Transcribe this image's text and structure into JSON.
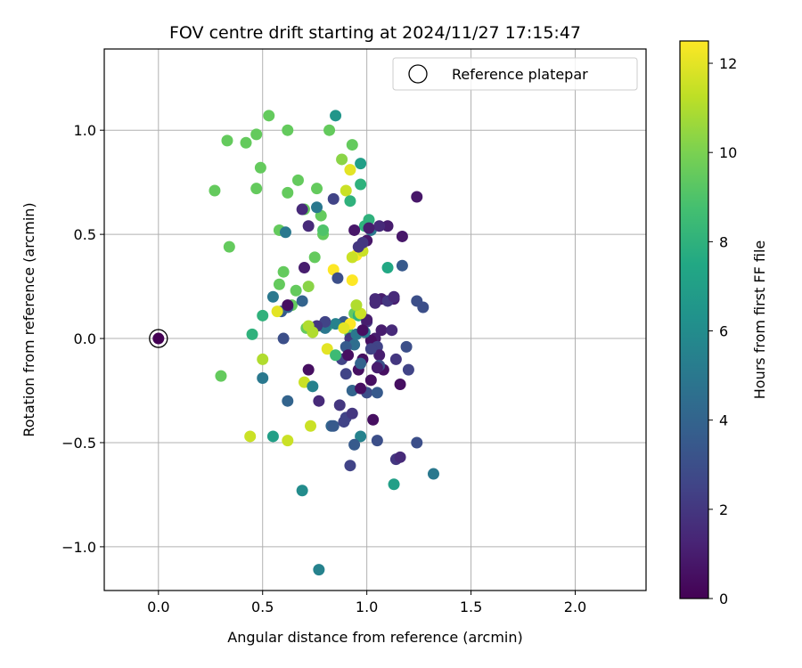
{
  "chart_data": {
    "type": "scatter",
    "title": "FOV centre drift starting at 2024/11/27 17:15:47",
    "xlabel": "Angular distance from reference (arcmin)",
    "ylabel": "Rotation from reference (arcmin)",
    "xlim": [
      -0.26,
      2.34
    ],
    "ylim": [
      -1.21,
      1.39
    ],
    "xticks": [
      0.0,
      0.5,
      1.0,
      1.5,
      2.0
    ],
    "xtick_labels": [
      "0.0",
      "0.5",
      "1.0",
      "1.5",
      "2.0"
    ],
    "yticks": [
      -1.0,
      -0.5,
      0.0,
      0.5,
      1.0
    ],
    "ytick_labels": [
      "−1.0",
      "−0.5",
      "0.0",
      "0.5",
      "1.0"
    ],
    "grid": true,
    "legend": {
      "placement": "top-right",
      "entries": [
        "Reference platepar"
      ]
    },
    "reference_point": {
      "x": 0.0,
      "y": 0.0
    },
    "colorbar": {
      "label": "Hours from first FF file",
      "range": [
        0,
        12.5
      ],
      "ticks": [
        0,
        2,
        4,
        6,
        8,
        10,
        12
      ],
      "tick_labels": [
        "0",
        "2",
        "4",
        "6",
        "8",
        "10",
        "12"
      ],
      "colormap": "viridis"
    },
    "series": [
      {
        "x": [
          0.53,
          0.62,
          0.27,
          0.33,
          0.42,
          0.47,
          0.49,
          0.47,
          0.62,
          0.67,
          0.76,
          0.7,
          0.78,
          0.58,
          0.34,
          0.79,
          0.61,
          0.58,
          0.66,
          0.6,
          0.64,
          0.71,
          0.78,
          0.72,
          0.3,
          0.44,
          0.62,
          0.7,
          0.73,
          0.88,
          0.9,
          0.97,
          1.1,
          0.93,
          0.82,
          0.72,
          0.69,
          0.76,
          0.79,
          0.75,
          0.84,
          0.86,
          0.93,
          0.95,
          0.98,
          0.99,
          1.01,
          0.92,
          0.85,
          0.84,
          0.81,
          0.8,
          0.92,
          0.94,
          0.96,
          1.04,
          1.07,
          1.12,
          1.13,
          1.24,
          1.17,
          1.1,
          1.07,
          1.04,
          1.0,
          0.92,
          0.98,
          1.02,
          1.05,
          1.17,
          1.16,
          1.08,
          1.06,
          1.02,
          0.96,
          0.9,
          0.87,
          0.83,
          0.77,
          0.74,
          0.72,
          0.7,
          0.6,
          0.62,
          0.5,
          0.55,
          0.69,
          0.77,
          0.84,
          0.9,
          0.93,
          1.0,
          1.03,
          1.14,
          1.16,
          1.32,
          1.24,
          1.13,
          1.05,
          0.97,
          0.94,
          0.92,
          0.89,
          0.93,
          0.97,
          1.05,
          1.06,
          0.97,
          0.94,
          0.95,
          0.99,
          0.9,
          0.88,
          0.91,
          0.98,
          1.0,
          1.02,
          1.27,
          1.19,
          1.14,
          1.05,
          1.2,
          1.1,
          1.24,
          1.13,
          1.04,
          0.97,
          0.89,
          0.85,
          0.8,
          0.76,
          0.69,
          0.59,
          0.55,
          0.62,
          0.5,
          0.45,
          0.5,
          0.72,
          0.74,
          0.93,
          0.95,
          0.92,
          0.89,
          0.92,
          0.97,
          1.02,
          1.06,
          1.01,
          1.0,
          0.98,
          0.96,
          0.94,
          0.62,
          0.57,
          0.81,
          0.85
        ],
        "y": [
          1.07,
          1.0,
          0.71,
          0.95,
          0.94,
          0.98,
          0.82,
          0.72,
          0.7,
          0.76,
          0.72,
          0.62,
          0.59,
          0.52,
          0.44,
          0.5,
          0.51,
          0.26,
          0.23,
          0.32,
          0.16,
          0.05,
          0.06,
          0.25,
          -0.18,
          -0.47,
          -0.49,
          -0.21,
          -0.42,
          0.86,
          0.71,
          0.84,
          0.34,
          0.93,
          1.0,
          0.54,
          0.62,
          0.63,
          0.52,
          0.39,
          0.33,
          0.29,
          0.28,
          0.4,
          0.42,
          0.54,
          0.57,
          0.66,
          1.07,
          0.67,
          0.06,
          0.05,
          0.02,
          0.12,
          0.11,
          0.0,
          0.04,
          0.04,
          0.19,
          0.68,
          0.49,
          0.54,
          0.19,
          0.17,
          0.08,
          0.0,
          -0.1,
          -0.01,
          -0.04,
          0.35,
          -0.22,
          -0.15,
          -0.08,
          -0.2,
          -0.15,
          -0.17,
          -0.32,
          -0.42,
          -0.3,
          -0.23,
          -0.15,
          0.34,
          0.0,
          -0.3,
          -0.19,
          -0.47,
          -0.73,
          -1.11,
          -0.42,
          -0.38,
          -0.36,
          -0.26,
          -0.39,
          -0.58,
          -0.57,
          -0.65,
          -0.5,
          -0.7,
          -0.49,
          -0.47,
          -0.51,
          -0.61,
          -0.4,
          -0.25,
          -0.24,
          -0.26,
          -0.13,
          -0.12,
          -0.03,
          0.02,
          0.03,
          -0.04,
          -0.1,
          -0.08,
          0.04,
          0.09,
          -0.05,
          0.15,
          -0.04,
          -0.1,
          -0.14,
          -0.15,
          0.18,
          0.18,
          0.2,
          0.19,
          0.12,
          0.08,
          0.07,
          0.08,
          0.06,
          0.18,
          0.13,
          0.2,
          0.15,
          0.11,
          0.02,
          -0.1,
          0.06,
          0.03,
          0.39,
          0.16,
          0.07,
          0.05,
          0.81,
          0.74,
          0.52,
          0.54,
          0.53,
          0.47,
          0.46,
          0.44,
          0.52,
          0.16,
          0.13,
          -0.05,
          -0.08
        ],
        "hours": [
          9.5,
          9.5,
          9.5,
          9.5,
          9.5,
          9.5,
          9.5,
          9.5,
          9.5,
          9.5,
          9.5,
          9.5,
          9.5,
          9.5,
          9.5,
          9.5,
          5,
          9.5,
          9.5,
          9.5,
          9.5,
          9.5,
          10.3,
          10.3,
          9.5,
          11.5,
          11.5,
          11.5,
          11.5,
          10.3,
          11.5,
          7,
          7.5,
          9.5,
          9.5,
          1.5,
          1.5,
          5,
          9,
          9.5,
          12.5,
          3,
          12.5,
          12.5,
          11.5,
          8,
          8,
          8,
          6.5,
          2.5,
          8,
          5,
          9,
          9.5,
          8,
          1,
          1,
          1.5,
          1,
          0.8,
          0.8,
          1,
          1,
          1.5,
          2,
          2,
          0.5,
          0.5,
          2.5,
          3.5,
          0.5,
          0.5,
          1,
          0.5,
          0.5,
          2.5,
          2,
          4,
          1.5,
          5.5,
          0.5,
          1,
          3,
          4,
          5,
          7,
          6,
          5.5,
          3.5,
          2.5,
          2,
          3,
          0.5,
          2,
          1.5,
          5,
          3,
          7,
          3,
          5.5,
          3.5,
          2.5,
          2.5,
          4,
          0.5,
          3.5,
          3,
          4,
          4.5,
          5,
          5,
          3.5,
          2.5,
          0.5,
          0.5,
          1,
          2.5,
          3,
          3,
          2,
          1,
          2.5,
          2,
          3,
          1.5,
          1.5,
          11.5,
          3.5,
          5.5,
          2.5,
          2,
          4,
          3.5,
          5,
          4,
          8,
          8,
          11,
          11,
          11,
          11.5,
          11,
          12.5,
          12,
          12,
          8,
          5,
          1.5,
          1,
          0.8,
          2,
          2,
          0.8,
          0.5,
          12,
          12,
          8.5
        ]
      }
    ]
  }
}
